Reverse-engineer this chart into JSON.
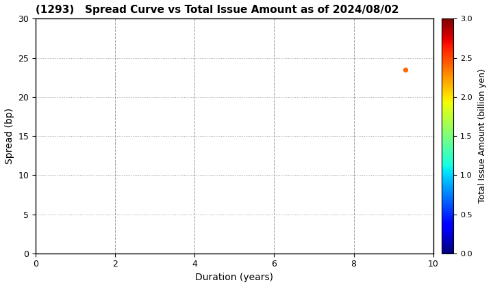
{
  "title": "(1293)   Spread Curve vs Total Issue Amount as of 2024/08/02",
  "xlabel": "Duration (years)",
  "ylabel": "Spread (bp)",
  "colorbar_label": "Total Issue Amount (billion yen)",
  "xlim": [
    0,
    10
  ],
  "ylim": [
    0,
    30
  ],
  "xticks": [
    0,
    2,
    4,
    6,
    8,
    10
  ],
  "yticks": [
    0,
    5,
    10,
    15,
    20,
    25,
    30
  ],
  "grid_yticks": [
    5,
    10,
    15,
    20,
    25,
    30
  ],
  "grid_xticks": [
    2,
    4,
    6,
    8,
    10
  ],
  "colorbar_min": 0.0,
  "colorbar_max": 3.0,
  "colorbar_ticks": [
    0.0,
    0.5,
    1.0,
    1.5,
    2.0,
    2.5,
    3.0
  ],
  "scatter_x": [
    9.3
  ],
  "scatter_y": [
    23.5
  ],
  "scatter_color_value": [
    2.4
  ],
  "scatter_size": 18,
  "background_color": "#ffffff",
  "title_fontsize": 11,
  "axis_label_fontsize": 10,
  "colorbar_label_fontsize": 9,
  "tick_fontsize": 9,
  "colorbar_tick_fontsize": 8
}
